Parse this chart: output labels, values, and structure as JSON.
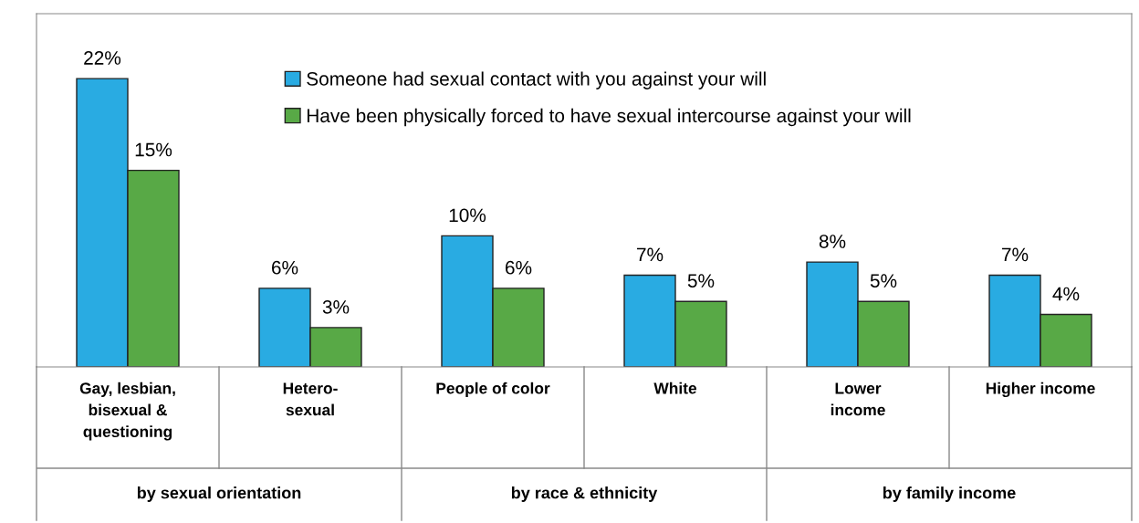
{
  "chart_data": {
    "type": "bar",
    "categories": [
      "Gay, lesbian,\nbisexual &\nquestioning",
      "Hetero-\nsexual",
      "People of color",
      "White",
      "Lower\nincome",
      "Higher income"
    ],
    "series": [
      {
        "name": "Someone had sexual contact with you against your will",
        "color": "#29abe2",
        "values": [
          22,
          6,
          10,
          7,
          8,
          7
        ],
        "value_labels": [
          "22%",
          "6%",
          "10%",
          "7%",
          "8%",
          "7%"
        ]
      },
      {
        "name": "Have been physically forced to have sexual intercourse against your will",
        "color": "#58a946",
        "values": [
          15,
          3,
          6,
          5,
          5,
          4
        ],
        "value_labels": [
          "15%",
          "3%",
          "6%",
          "5%",
          "5%",
          "4%"
        ]
      }
    ],
    "annotations": [
      "by sexual orientation",
      "by race & ethnicity",
      "by family income"
    ],
    "legend": "top right"
  }
}
